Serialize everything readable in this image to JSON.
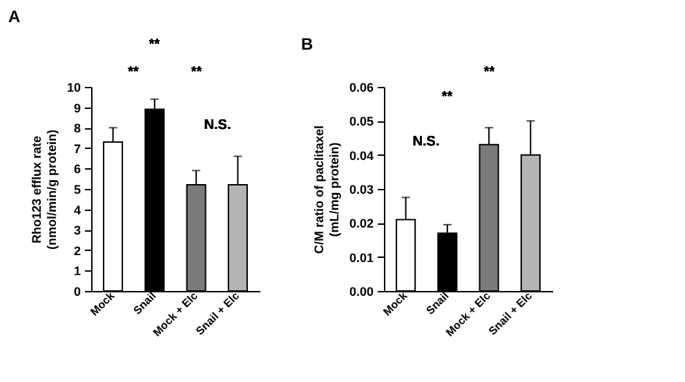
{
  "chart_data": [
    {
      "type": "bar",
      "title": "A",
      "ylabel": "Rho123 efflux rate\n(nmol/min/g protein)",
      "categories": [
        "Mock",
        "Snail",
        "Mock + Elc",
        "Snail + Elc"
      ],
      "values": [
        7.3,
        8.9,
        5.2,
        5.2
      ],
      "colors": [
        "#ffffff",
        "#000000",
        "#7a7a7a",
        "#b4b4b4"
      ],
      "errors": [
        [
          7.3,
          8.0
        ],
        [
          8.9,
          9.4
        ],
        [
          5.2,
          5.9
        ],
        [
          5.2,
          6.6
        ]
      ],
      "ylim": [
        0,
        10
      ],
      "yticks": [
        0,
        1,
        2,
        3,
        4,
        5,
        6,
        7,
        8,
        9,
        10
      ],
      "grid": false,
      "annotations": [
        "**",
        "**",
        "**",
        "N.S."
      ]
    },
    {
      "type": "bar",
      "title": "B",
      "ylabel": "C/M ratio of paclitaxel\n(mL/mg protein)",
      "categories": [
        "Mock",
        "Snail",
        "Mock + Elc",
        "Snail + Elc"
      ],
      "values": [
        0.021,
        0.017,
        0.043,
        0.04
      ],
      "colors": [
        "#ffffff",
        "#000000",
        "#7a7a7a",
        "#b4b4b4"
      ],
      "errors": [
        [
          0.021,
          0.0275
        ],
        [
          0.017,
          0.0195
        ],
        [
          0.043,
          0.048
        ],
        [
          0.04,
          0.05
        ]
      ],
      "ylim": [
        0,
        0.06
      ],
      "yticks": [
        {
          "value": 0,
          "label": "0.00"
        },
        {
          "value": 0.01,
          "label": "0.01"
        },
        {
          "value": 0.02,
          "label": "0.02"
        },
        {
          "value": 0.03,
          "label": "0.03"
        },
        {
          "value": 0.04,
          "label": "0.04"
        },
        {
          "value": 0.05,
          "label": "0.05"
        },
        {
          "value": 0.06,
          "label": "0.06"
        }
      ],
      "grid": false,
      "annotations": [
        "N.S.",
        "**",
        "**"
      ]
    }
  ]
}
